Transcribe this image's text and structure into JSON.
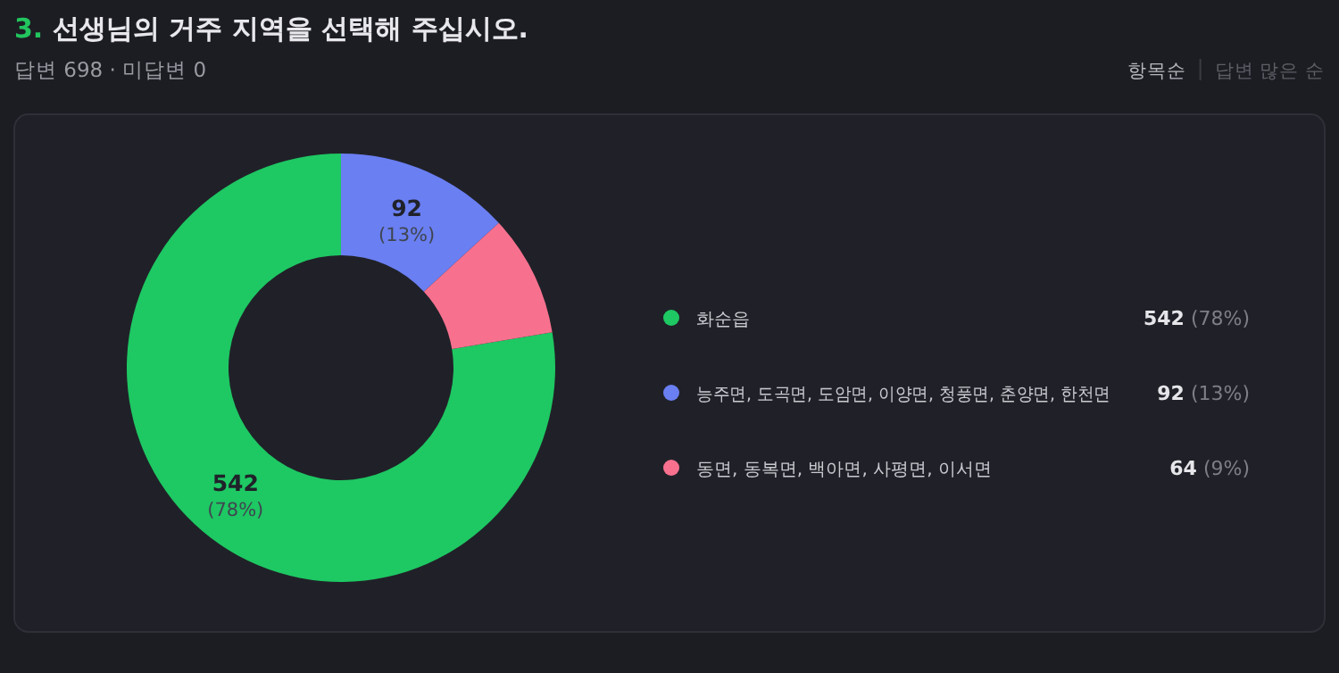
{
  "chart_data": {
    "type": "donut",
    "title": "3. 선생님의 거주 지역을 선택해 주십시오.",
    "subtitle": "답변 698 · 미답변 0",
    "categories": [
      "화순읍",
      "능주면, 도곡면, 도암면, 이양면, 청풍면, 춘양면, 한천면",
      "동면, 동복면, 백아면, 사평면, 이서면"
    ],
    "values": [
      542,
      92,
      64
    ],
    "value_labels": [
      "542 (78%)",
      "92 (13%)",
      "64 (9%)"
    ],
    "colors": [
      "#1ec863",
      "#6a7ff2",
      "#f7718f"
    ],
    "legend": "right",
    "annotations": [
      "항목순",
      "답변 많은 순"
    ]
  }
}
